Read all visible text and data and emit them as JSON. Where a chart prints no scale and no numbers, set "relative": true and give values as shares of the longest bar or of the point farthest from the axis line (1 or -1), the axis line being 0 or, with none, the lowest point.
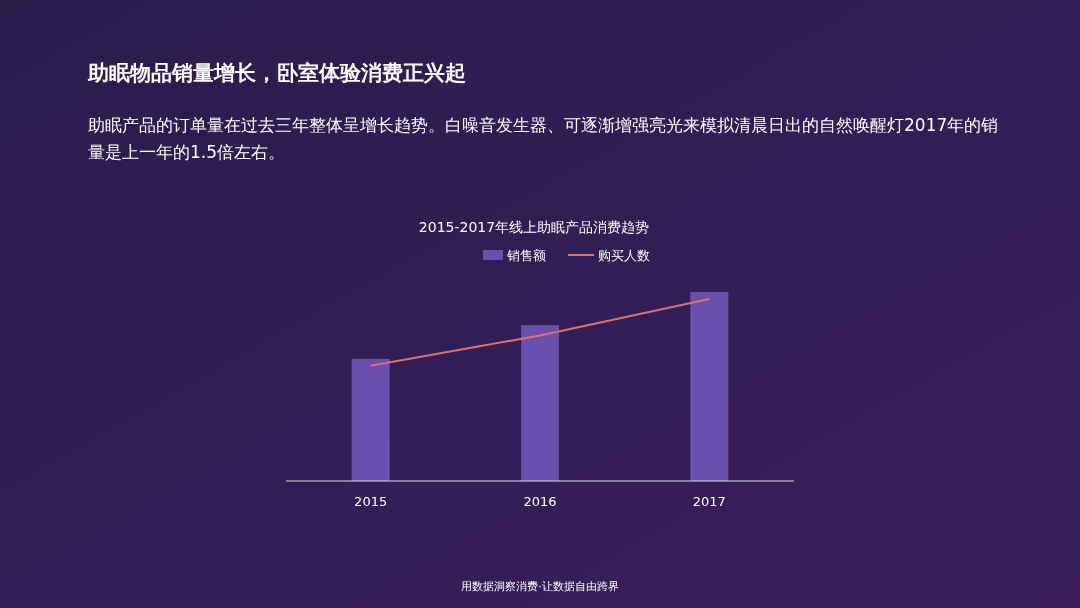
{
  "chart_data": {
    "type": "bar",
    "title": "助眠物品销量增长，卧室体验消费正兴起",
    "subtitle": "助眠产品的订单量在过去三年整体呈增长趋势。白噪音发生器、可逐渐增强亮光来模拟清晨日出的自然唤醒灯2017年的销量是上一年的1.5倍左右。",
    "annotations": [
      "2015-2017年线上助眠产品消费趋势",
      "用数据洞察消费·让数据自由跨界"
    ],
    "categories": [
      "2015",
      "2016",
      "2017"
    ],
    "relative": true,
    "legend": "top",
    "series": [
      {
        "name": "销售额",
        "color": "#6a4fad",
        "values": [
          0.646,
          0.825,
          1
        ]
      },
      {
        "name": "购买人数",
        "type": "line",
        "color": "#d9736f",
        "values": [
          0.61,
          0.77,
          0.963
        ]
      }
    ]
  }
}
